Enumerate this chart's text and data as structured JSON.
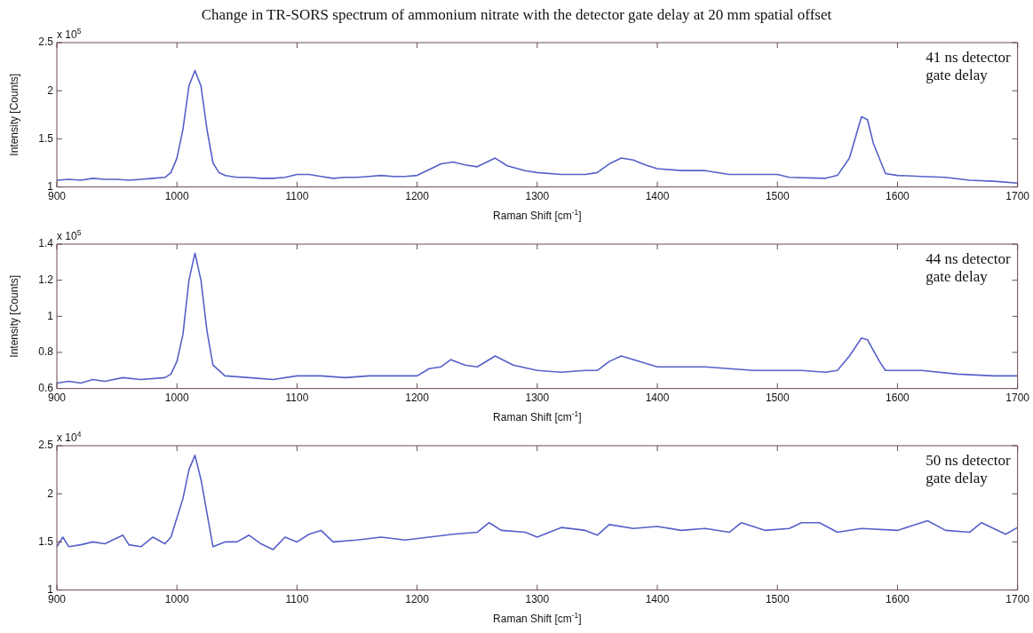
{
  "chart_data": [
    {
      "type": "line",
      "title": "Change in TR-SORS spectrum of ammonium nitrate with the detector gate delay at 20 mm spatial offset",
      "xlabel": "Raman Shift [cm$^{-1}$]",
      "ylabel": "Intensity [Counts]",
      "annotations": [
        "x 10$^{5}$",
        "41 ns detector gate delay"
      ],
      "xlim": [
        900,
        1700
      ],
      "xticks": [
        900,
        1000,
        1100,
        1200,
        1300,
        1400,
        1500,
        1600,
        1700
      ],
      "ylim": [
        1,
        2.5
      ],
      "yticks": [
        1,
        1.5,
        2,
        2.5
      ],
      "x": [
        900,
        910,
        920,
        930,
        940,
        950,
        960,
        970,
        980,
        990,
        995,
        1000,
        1005,
        1010,
        1015,
        1020,
        1025,
        1030,
        1035,
        1040,
        1050,
        1060,
        1070,
        1080,
        1090,
        1100,
        1110,
        1120,
        1130,
        1140,
        1150,
        1160,
        1170,
        1180,
        1190,
        1200,
        1210,
        1220,
        1230,
        1240,
        1250,
        1255,
        1265,
        1275,
        1290,
        1300,
        1320,
        1340,
        1350,
        1360,
        1370,
        1380,
        1390,
        1400,
        1420,
        1440,
        1460,
        1480,
        1500,
        1510,
        1540,
        1550,
        1560,
        1570,
        1575,
        1580,
        1590,
        1600,
        1620,
        1640,
        1660,
        1680,
        1700
      ],
      "series": [
        {
          "color": "#5560c8",
          "values": [
            1.07,
            1.08,
            1.07,
            1.09,
            1.08,
            1.08,
            1.07,
            1.08,
            1.09,
            1.1,
            1.15,
            1.3,
            1.6,
            2.05,
            2.21,
            2.05,
            1.6,
            1.25,
            1.15,
            1.12,
            1.1,
            1.1,
            1.09,
            1.09,
            1.1,
            1.13,
            1.13,
            1.11,
            1.09,
            1.1,
            1.1,
            1.11,
            1.12,
            1.11,
            1.11,
            1.12,
            1.18,
            1.24,
            1.26,
            1.23,
            1.21,
            1.24,
            1.3,
            1.22,
            1.17,
            1.15,
            1.13,
            1.13,
            1.15,
            1.24,
            1.3,
            1.28,
            1.23,
            1.19,
            1.17,
            1.17,
            1.13,
            1.13,
            1.13,
            1.1,
            1.09,
            1.12,
            1.3,
            1.73,
            1.7,
            1.45,
            1.14,
            1.12,
            1.11,
            1.1,
            1.07,
            1.06,
            1.04
          ]
        }
      ]
    },
    {
      "type": "line",
      "xlabel": "Raman Shift [cm$^{-1}$]",
      "ylabel": "Intensity [Counts]",
      "annotations": [
        "x 10$^{5}$",
        "44 ns detector gate delay"
      ],
      "xlim": [
        900,
        1700
      ],
      "xticks": [
        900,
        1000,
        1100,
        1200,
        1300,
        1400,
        1500,
        1600,
        1700
      ],
      "ylim": [
        0.6,
        1.4
      ],
      "yticks": [
        0.6,
        0.8,
        1,
        1.2,
        1.4
      ],
      "x": [
        900,
        910,
        920,
        930,
        940,
        955,
        970,
        990,
        995,
        1000,
        1005,
        1010,
        1015,
        1020,
        1025,
        1030,
        1040,
        1060,
        1080,
        1100,
        1120,
        1140,
        1160,
        1180,
        1200,
        1210,
        1220,
        1228,
        1240,
        1250,
        1265,
        1280,
        1300,
        1320,
        1340,
        1350,
        1360,
        1370,
        1380,
        1400,
        1420,
        1440,
        1460,
        1480,
        1500,
        1520,
        1540,
        1550,
        1560,
        1570,
        1575,
        1585,
        1590,
        1620,
        1650,
        1680,
        1700
      ],
      "series": [
        {
          "color": "#5560c8",
          "values": [
            0.63,
            0.64,
            0.63,
            0.65,
            0.64,
            0.66,
            0.65,
            0.66,
            0.68,
            0.75,
            0.9,
            1.2,
            1.35,
            1.2,
            0.92,
            0.73,
            0.67,
            0.66,
            0.65,
            0.67,
            0.67,
            0.66,
            0.67,
            0.67,
            0.67,
            0.71,
            0.72,
            0.76,
            0.73,
            0.72,
            0.78,
            0.73,
            0.7,
            0.69,
            0.7,
            0.7,
            0.75,
            0.78,
            0.76,
            0.72,
            0.72,
            0.72,
            0.71,
            0.7,
            0.7,
            0.7,
            0.69,
            0.7,
            0.78,
            0.88,
            0.87,
            0.75,
            0.7,
            0.7,
            0.68,
            0.67,
            0.67
          ]
        }
      ]
    },
    {
      "type": "line",
      "xlabel": "Raman Shift [cm$^{-1}$]",
      "annotations": [
        "x 10$^{4}$",
        "50 ns detector gate delay"
      ],
      "xlim": [
        900,
        1700
      ],
      "xticks": [
        900,
        1000,
        1100,
        1200,
        1300,
        1400,
        1500,
        1600,
        1700
      ],
      "ylim": [
        1,
        2.5
      ],
      "yticks": [
        1,
        1.5,
        2,
        2.5
      ],
      "x": [
        900,
        905,
        910,
        920,
        930,
        940,
        955,
        960,
        970,
        980,
        990,
        995,
        1000,
        1005,
        1010,
        1015,
        1020,
        1025,
        1030,
        1040,
        1050,
        1060,
        1070,
        1080,
        1090,
        1100,
        1110,
        1120,
        1130,
        1150,
        1170,
        1190,
        1210,
        1230,
        1250,
        1260,
        1270,
        1290,
        1300,
        1320,
        1340,
        1350,
        1360,
        1380,
        1400,
        1420,
        1440,
        1460,
        1470,
        1490,
        1510,
        1520,
        1535,
        1550,
        1570,
        1600,
        1625,
        1640,
        1660,
        1670,
        1690,
        1700
      ],
      "series": [
        {
          "color": "#5560c8",
          "values": [
            1.45,
            1.55,
            1.45,
            1.47,
            1.5,
            1.48,
            1.57,
            1.47,
            1.45,
            1.55,
            1.48,
            1.55,
            1.75,
            1.95,
            2.25,
            2.4,
            2.15,
            1.8,
            1.45,
            1.5,
            1.5,
            1.57,
            1.48,
            1.42,
            1.55,
            1.5,
            1.58,
            1.62,
            1.5,
            1.52,
            1.55,
            1.52,
            1.55,
            1.58,
            1.6,
            1.7,
            1.62,
            1.6,
            1.55,
            1.65,
            1.62,
            1.57,
            1.68,
            1.64,
            1.66,
            1.62,
            1.64,
            1.6,
            1.7,
            1.62,
            1.64,
            1.7,
            1.7,
            1.6,
            1.64,
            1.62,
            1.72,
            1.62,
            1.6,
            1.7,
            1.58,
            1.65
          ]
        }
      ]
    }
  ]
}
